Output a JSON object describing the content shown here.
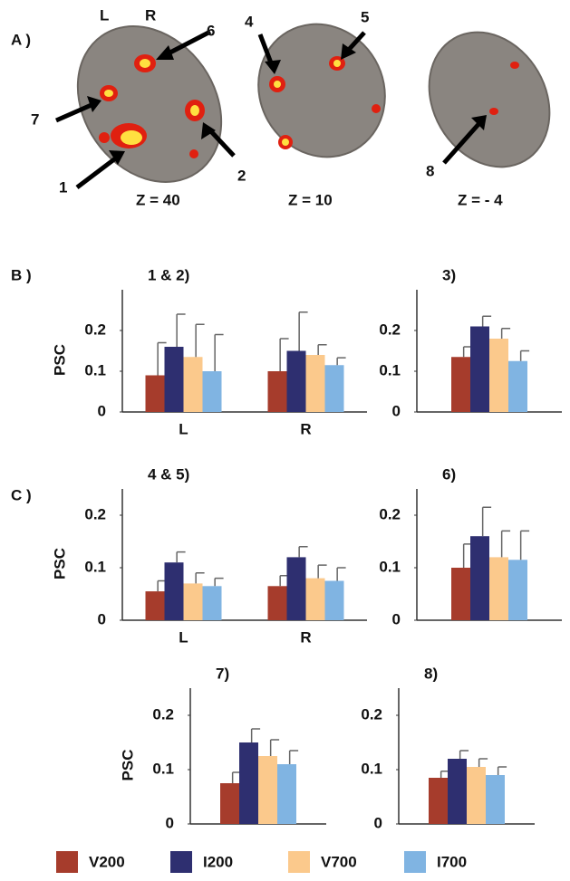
{
  "panel_a": {
    "label": "A )",
    "hemi_left": "L",
    "hemi_right": "R",
    "slices": [
      {
        "z": "Z = 40"
      },
      {
        "z": "Z = 10"
      },
      {
        "z": "Z = - 4"
      }
    ],
    "regions": [
      "1",
      "2",
      "4",
      "5",
      "6",
      "7",
      "8"
    ]
  },
  "row_labels": [
    "B )",
    "C )"
  ],
  "legend": [
    {
      "name": "V200",
      "color": "#a63c2c"
    },
    {
      "name": "I200",
      "color": "#2e2f70"
    },
    {
      "name": "V700",
      "color": "#fbc98c"
    },
    {
      "name": "I700",
      "color": "#80b4e2"
    }
  ],
  "chart_data": [
    {
      "type": "bar",
      "title": "1 & 2)",
      "ylabel": "PSC",
      "categories": [
        "L",
        "R"
      ],
      "ylim": [
        0,
        0.3
      ],
      "yticks": [
        0,
        0.1,
        0.2
      ],
      "series": [
        {
          "color": "#a63c2c",
          "values": [
            0.09,
            0.1
          ],
          "errors": [
            0.08,
            0.08
          ]
        },
        {
          "color": "#2e2f70",
          "values": [
            0.16,
            0.15
          ],
          "errors": [
            0.08,
            0.095
          ]
        },
        {
          "color": "#fbc98c",
          "values": [
            0.135,
            0.14
          ],
          "errors": [
            0.08,
            0.025
          ]
        },
        {
          "color": "#80b4e2",
          "values": [
            0.1,
            0.115
          ],
          "errors": [
            0.09,
            0.018
          ]
        }
      ]
    },
    {
      "type": "bar",
      "title": "3)",
      "categories": [
        null
      ],
      "ylim": [
        0,
        0.3
      ],
      "yticks": [
        0,
        0.1,
        0.2
      ],
      "series": [
        {
          "color": "#a63c2c",
          "values": [
            0.135
          ],
          "errors": [
            0.025
          ]
        },
        {
          "color": "#2e2f70",
          "values": [
            0.21
          ],
          "errors": [
            0.025
          ]
        },
        {
          "color": "#fbc98c",
          "values": [
            0.18
          ],
          "errors": [
            0.025
          ]
        },
        {
          "color": "#80b4e2",
          "values": [
            0.125
          ],
          "errors": [
            0.025
          ]
        }
      ]
    },
    {
      "type": "bar",
      "title": "4 & 5)",
      "ylabel": "PSC",
      "categories": [
        "L",
        "R"
      ],
      "ylim": [
        0,
        0.25
      ],
      "yticks": [
        0,
        0.1,
        0.2
      ],
      "series": [
        {
          "color": "#a63c2c",
          "values": [
            0.055,
            0.065
          ],
          "errors": [
            0.02,
            0.02
          ]
        },
        {
          "color": "#2e2f70",
          "values": [
            0.11,
            0.12
          ],
          "errors": [
            0.02,
            0.02
          ]
        },
        {
          "color": "#fbc98c",
          "values": [
            0.07,
            0.08
          ],
          "errors": [
            0.02,
            0.025
          ]
        },
        {
          "color": "#80b4e2",
          "values": [
            0.065,
            0.075
          ],
          "errors": [
            0.015,
            0.025
          ]
        }
      ]
    },
    {
      "type": "bar",
      "title": "6)",
      "categories": [
        null
      ],
      "ylim": [
        0,
        0.25
      ],
      "yticks": [
        0,
        0.1,
        0.2
      ],
      "series": [
        {
          "color": "#a63c2c",
          "values": [
            0.1
          ],
          "errors": [
            0.045
          ]
        },
        {
          "color": "#2e2f70",
          "values": [
            0.16
          ],
          "errors": [
            0.055
          ]
        },
        {
          "color": "#fbc98c",
          "values": [
            0.12
          ],
          "errors": [
            0.05
          ]
        },
        {
          "color": "#80b4e2",
          "values": [
            0.115
          ],
          "errors": [
            0.055
          ]
        }
      ]
    },
    {
      "type": "bar",
      "title": "7)",
      "ylabel": "PSC",
      "categories": [
        null
      ],
      "ylim": [
        0,
        0.25
      ],
      "yticks": [
        0,
        0.1,
        0.2
      ],
      "series": [
        {
          "color": "#a63c2c",
          "values": [
            0.075
          ],
          "errors": [
            0.02
          ]
        },
        {
          "color": "#2e2f70",
          "values": [
            0.15
          ],
          "errors": [
            0.025
          ]
        },
        {
          "color": "#fbc98c",
          "values": [
            0.125
          ],
          "errors": [
            0.03
          ]
        },
        {
          "color": "#80b4e2",
          "values": [
            0.11
          ],
          "errors": [
            0.025
          ]
        }
      ]
    },
    {
      "type": "bar",
      "title": "8)",
      "categories": [
        null
      ],
      "ylim": [
        0,
        0.25
      ],
      "yticks": [
        0,
        0.1,
        0.2
      ],
      "series": [
        {
          "color": "#a63c2c",
          "values": [
            0.085
          ],
          "errors": [
            0.012
          ]
        },
        {
          "color": "#2e2f70",
          "values": [
            0.12
          ],
          "errors": [
            0.015
          ]
        },
        {
          "color": "#fbc98c",
          "values": [
            0.105
          ],
          "errors": [
            0.015
          ]
        },
        {
          "color": "#80b4e2",
          "values": [
            0.09
          ],
          "errors": [
            0.015
          ]
        }
      ]
    }
  ]
}
